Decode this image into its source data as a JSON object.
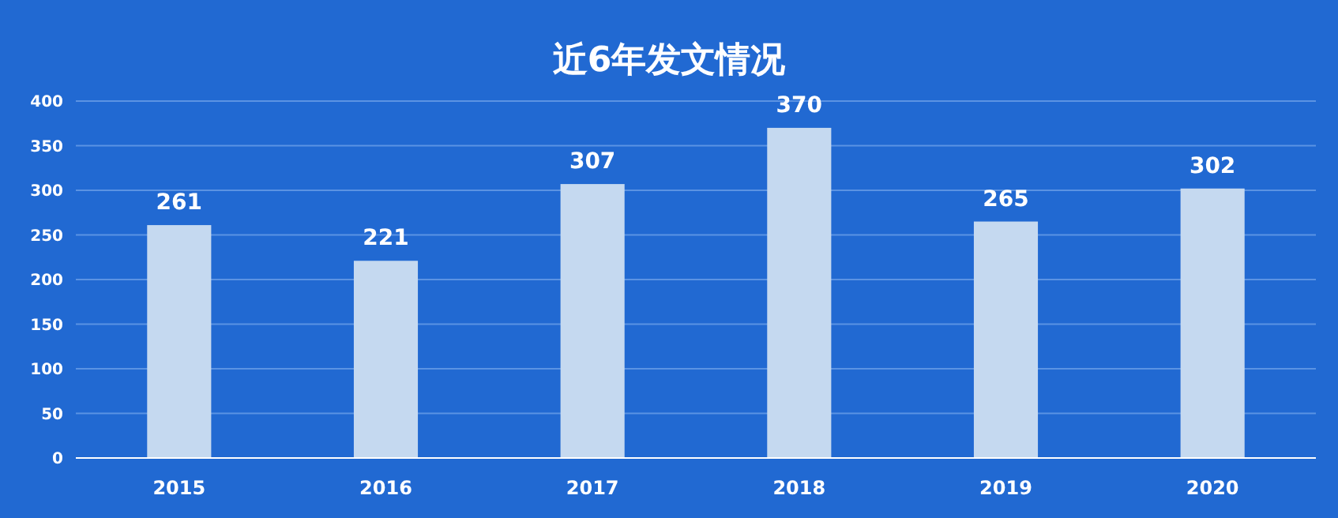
{
  "chart_data": {
    "type": "bar",
    "title": "近6年发文情况",
    "categories": [
      "2015",
      "2016",
      "2017",
      "2018",
      "2019",
      "2020"
    ],
    "values": [
      261,
      221,
      307,
      370,
      265,
      302
    ],
    "color": "#c5d9f0",
    "ylim": [
      0,
      400
    ],
    "yticks": [
      0,
      50,
      100,
      150,
      200,
      250,
      300,
      350,
      400
    ],
    "grid": "y",
    "data_labels": true
  }
}
